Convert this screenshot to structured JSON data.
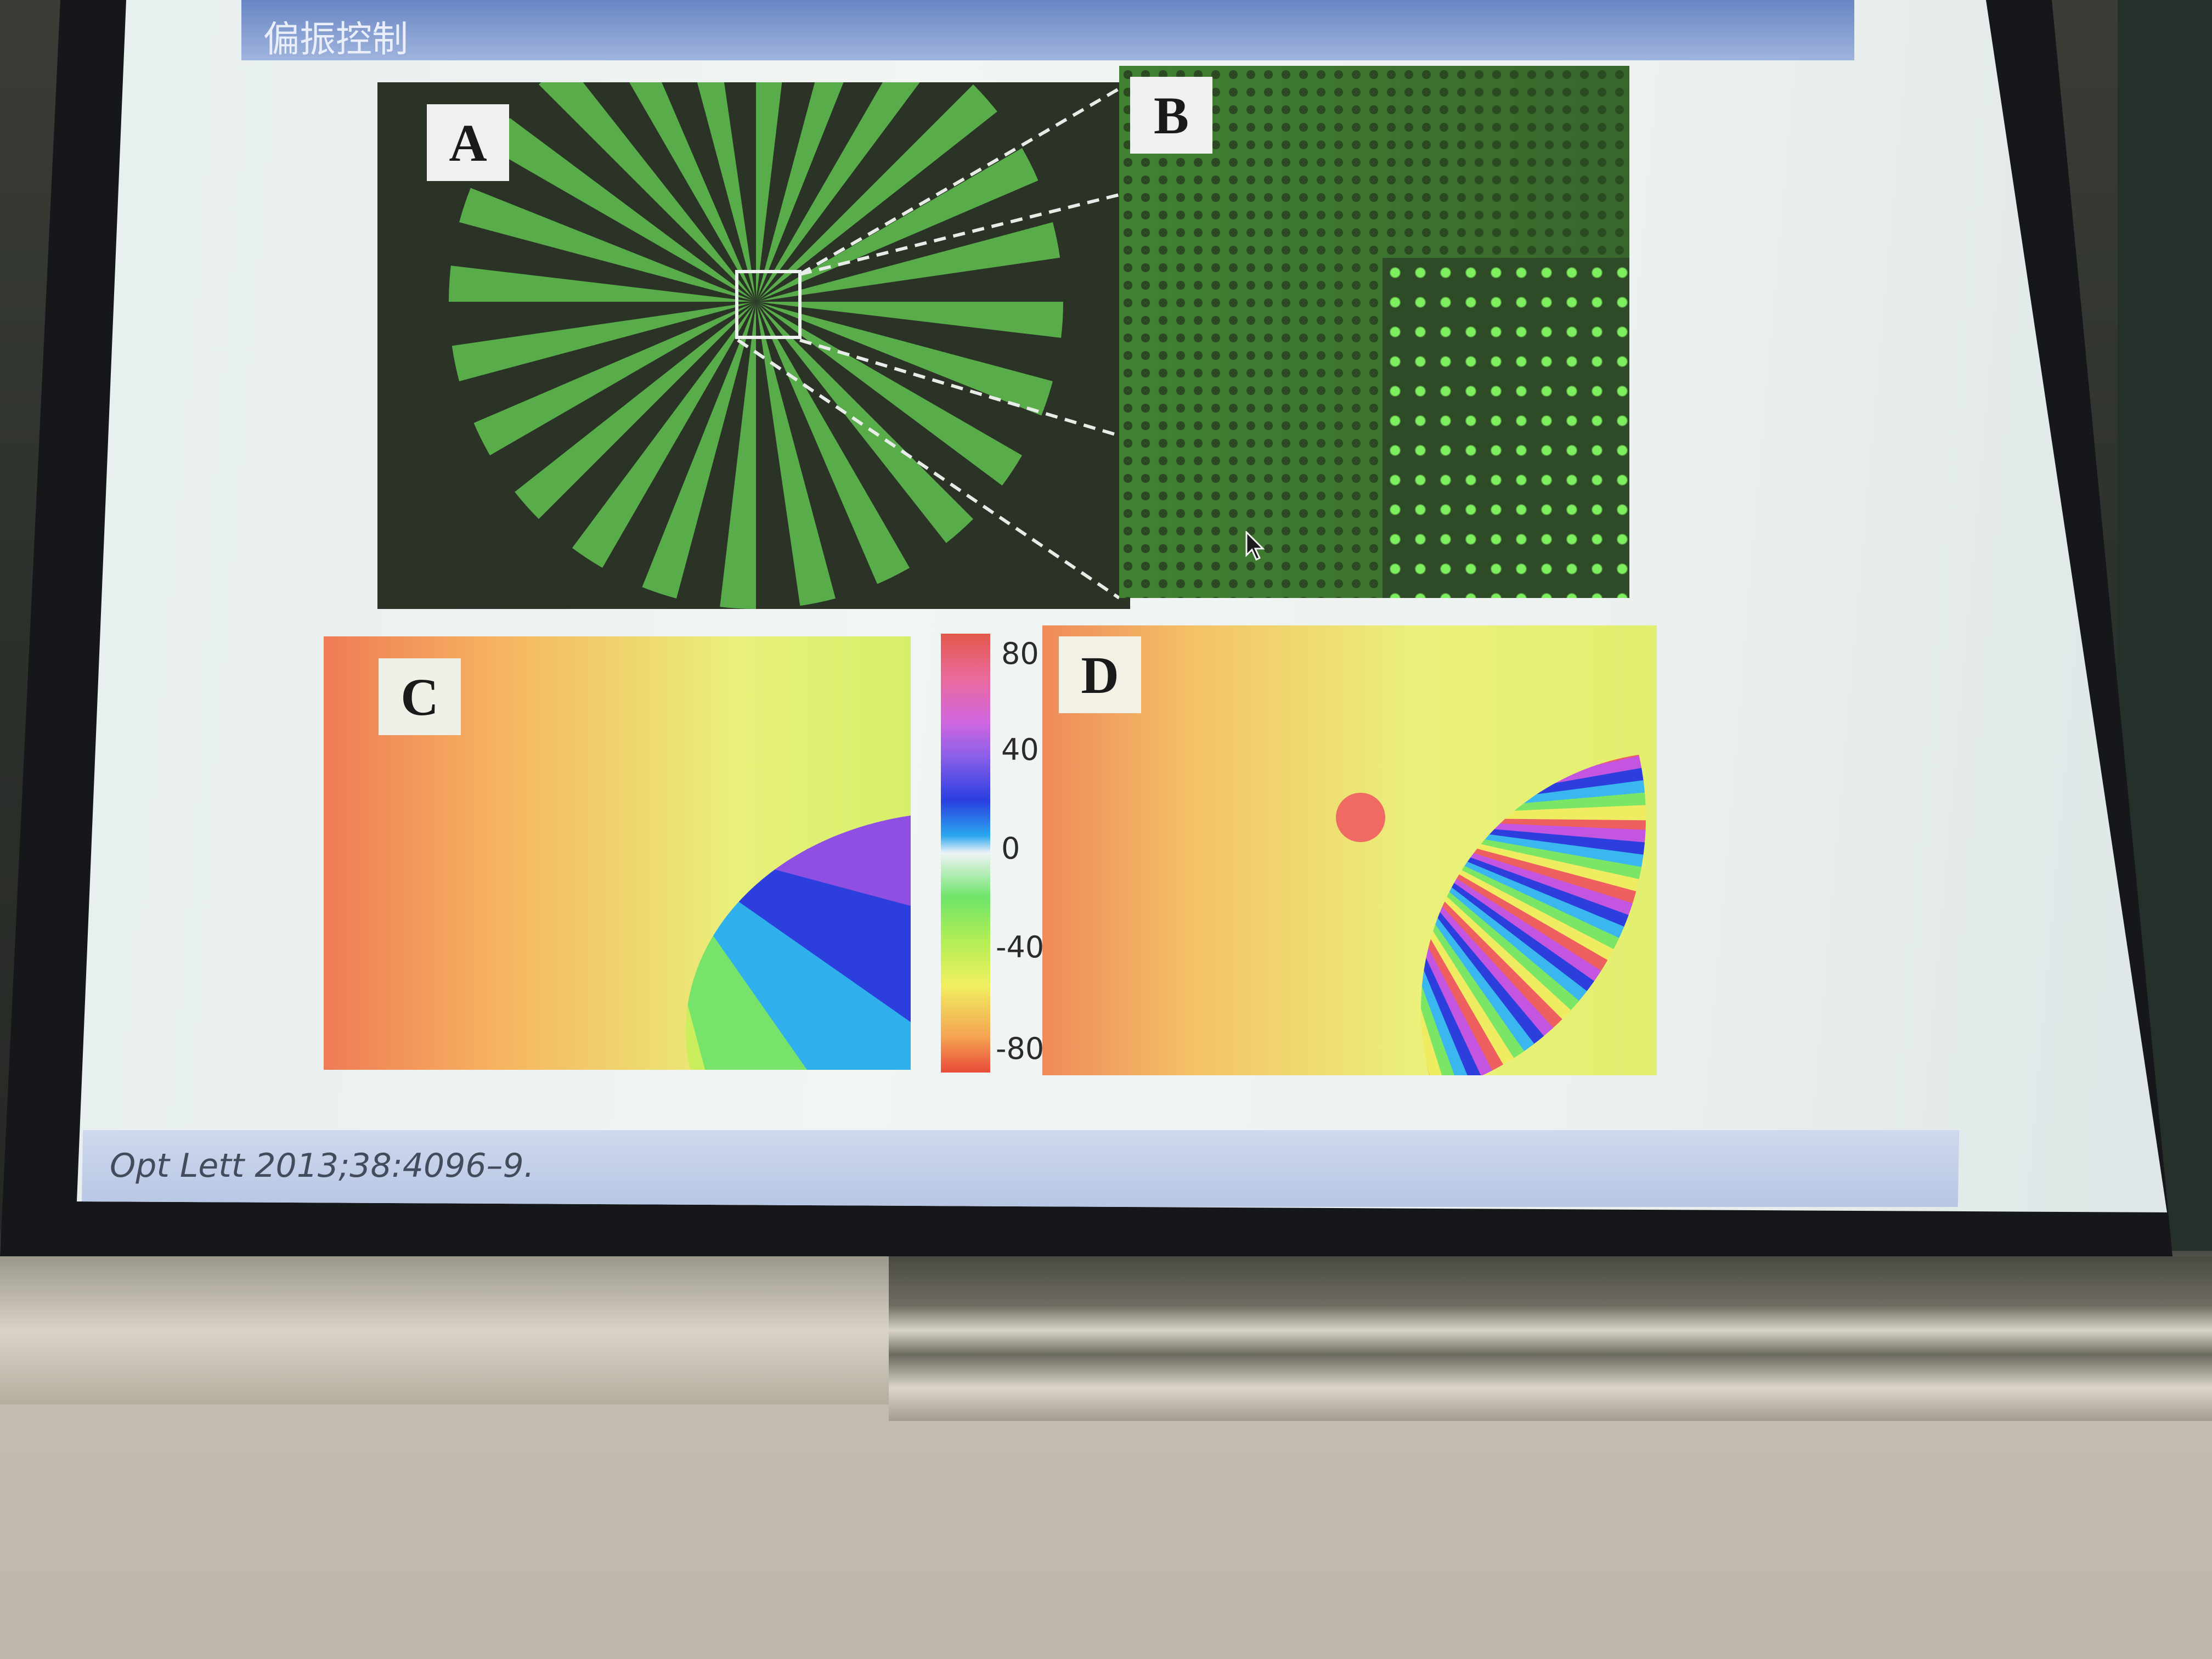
{
  "slide": {
    "title": "偏振控制",
    "citation": "Opt Lett 2013;38:4096–9."
  },
  "panels": {
    "a": {
      "label": "A"
    },
    "b": {
      "label": "B"
    },
    "c": {
      "label": "C"
    },
    "d": {
      "label": "D"
    }
  },
  "colorbar": {
    "ticks": [
      "80",
      "40",
      "0",
      "-40",
      "-80"
    ]
  },
  "colors": {
    "title_bar": "#7a93cc",
    "footer_bar": "#c1cde8",
    "fluorescence_green": "#6fe35a"
  }
}
